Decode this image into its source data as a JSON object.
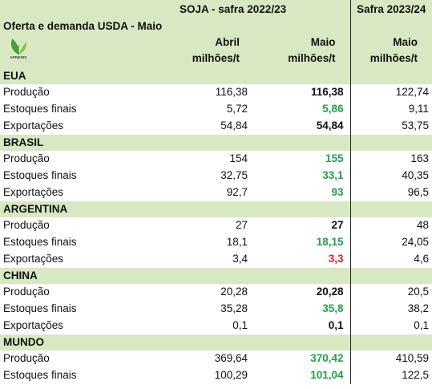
{
  "header": {
    "title_2223": "SOJA - safra 2022/23",
    "title_2324": "Safra 2023/24",
    "subtitle": "Oferta e demanda USDA - Maio",
    "logo_text": "APNEWS",
    "col_abril_1": "Abril",
    "col_abril_2": "milhões/t",
    "col_maio_1": "Maio",
    "col_maio_2": "milhões/t",
    "col_maio24_1": "Maio",
    "col_maio24_2": "milhões/t"
  },
  "colors": {
    "section_bg": "#d7e8c2",
    "increase": "#22a04a",
    "decrease": "#e02020"
  },
  "sections": [
    {
      "name": "EUA",
      "rows": [
        {
          "label": "Produção",
          "abril": "116,38",
          "maio": "116,38",
          "trend": "same",
          "s2324": "122,74"
        },
        {
          "label": "Estoques finais",
          "abril": "5,72",
          "maio": "5,86",
          "trend": "up",
          "s2324": "9,11"
        },
        {
          "label": "Exportações",
          "abril": "54,84",
          "maio": "54,84",
          "trend": "same",
          "s2324": "53,75"
        }
      ]
    },
    {
      "name": "BRASIL",
      "rows": [
        {
          "label": "Produção",
          "abril": "154",
          "maio": "155",
          "trend": "up",
          "s2324": "163"
        },
        {
          "label": "Estoques finais",
          "abril": "32,75",
          "maio": "33,1",
          "trend": "up",
          "s2324": "40,35"
        },
        {
          "label": "Exportações",
          "abril": "92,7",
          "maio": "93",
          "trend": "up",
          "s2324": "96,5"
        }
      ]
    },
    {
      "name": "ARGENTINA",
      "rows": [
        {
          "label": "Produção",
          "abril": "27",
          "maio": "27",
          "trend": "same",
          "s2324": "48"
        },
        {
          "label": "Estoques finais",
          "abril": "18,1",
          "maio": "18,15",
          "trend": "up",
          "s2324": "24,05"
        },
        {
          "label": "Exportações",
          "abril": "3,4",
          "maio": "3,3",
          "trend": "down",
          "s2324": "4,6"
        }
      ]
    },
    {
      "name": "CHINA",
      "rows": [
        {
          "label": "Produção",
          "abril": "20,28",
          "maio": "20,28",
          "trend": "same",
          "s2324": "20,5"
        },
        {
          "label": "Estoques finais",
          "abril": "35,28",
          "maio": "35,8",
          "trend": "up",
          "s2324": "38,2"
        },
        {
          "label": "Exportações",
          "abril": "0,1",
          "maio": "0,1",
          "trend": "same",
          "s2324": "0,1"
        }
      ]
    },
    {
      "name": "MUNDO",
      "rows": [
        {
          "label": "Produção",
          "abril": "369,64",
          "maio": "370,42",
          "trend": "up",
          "s2324": "410,59"
        },
        {
          "label": "Estoques finais",
          "abril": "100,29",
          "maio": "101,04",
          "trend": "up",
          "s2324": "122,5"
        }
      ]
    }
  ]
}
